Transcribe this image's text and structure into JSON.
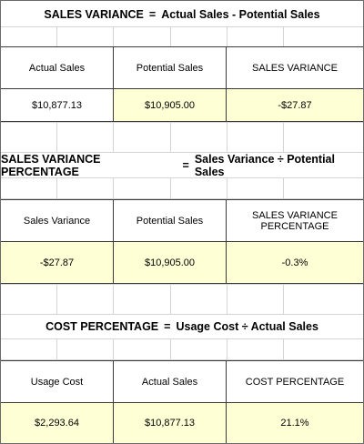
{
  "sections": [
    {
      "title": "SALES VARIANCE",
      "operator": "=",
      "formula": "Actual Sales - Potential Sales",
      "headers": [
        "Actual Sales",
        "Potential Sales",
        "SALES VARIANCE"
      ],
      "values": [
        "$10,877.13",
        "$10,905.00",
        "-$27.87"
      ]
    },
    {
      "title": "SALES VARIANCE PERCENTAGE",
      "operator": "=",
      "formula": "Sales Variance ÷ Potential Sales",
      "headers": [
        "Sales Variance",
        "Potential Sales",
        "SALES VARIANCE PERCENTAGE"
      ],
      "values": [
        "-$27.87",
        "$10,905.00",
        "-0.3%"
      ]
    },
    {
      "title": "COST PERCENTAGE",
      "operator": "=",
      "formula": "Usage Cost ÷ Actual Sales",
      "headers": [
        "Usage Cost",
        "Actual Sales",
        "COST PERCENTAGE"
      ],
      "values": [
        "$2,293.64",
        "$10,877.13",
        "21.1%"
      ]
    }
  ],
  "colors": {
    "highlight": "#ffffd6",
    "border": "#3a3a3a",
    "gridline": "#d4d4d4"
  }
}
